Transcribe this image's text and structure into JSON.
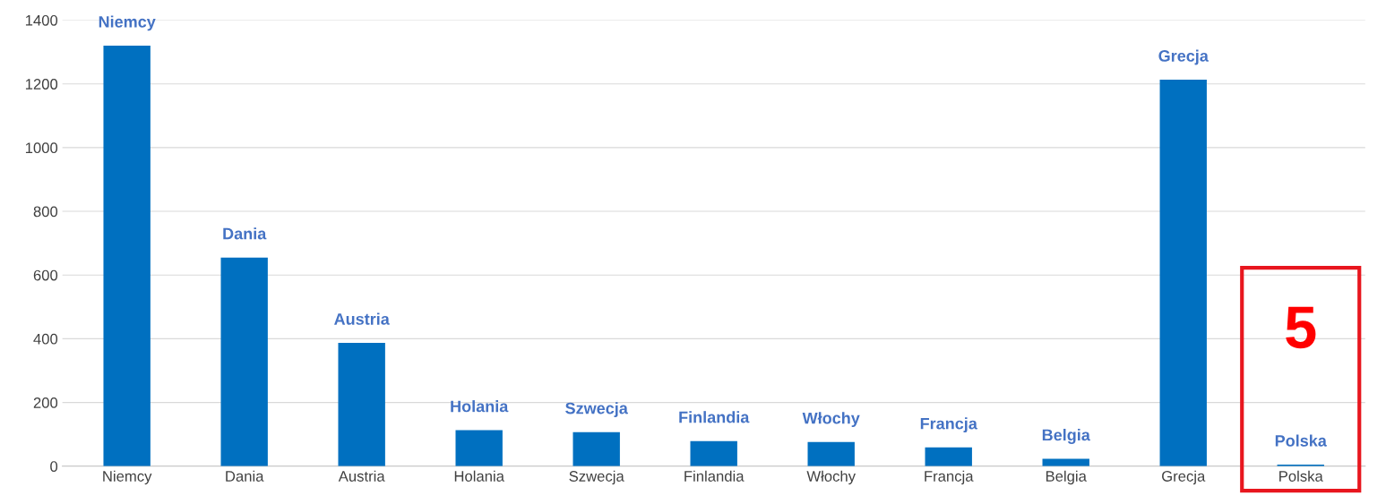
{
  "chart_data": {
    "type": "bar",
    "categories": [
      "Niemcy",
      "Dania",
      "Austria",
      "Holania",
      "Szwecja",
      "Finlandia",
      "Włochy",
      "Francja",
      "Belgia",
      "Grecja",
      "Polska"
    ],
    "values": [
      1320,
      655,
      387,
      113,
      107,
      79,
      76,
      59,
      23,
      1213,
      5
    ],
    "value_labels": [
      "Niemcy",
      "Dania",
      "Austria",
      "Holania",
      "Szwecja",
      "Finlandia",
      "Włochy",
      "Francja",
      "Belgia",
      "Grecja",
      "Polska"
    ],
    "color": "#0070c0",
    "ylim": [
      0,
      1400
    ],
    "yticks": [
      0,
      200,
      400,
      600,
      800,
      1000,
      1200,
      1400
    ],
    "grid": "y",
    "legend": false,
    "annotations": [
      "5"
    ]
  }
}
